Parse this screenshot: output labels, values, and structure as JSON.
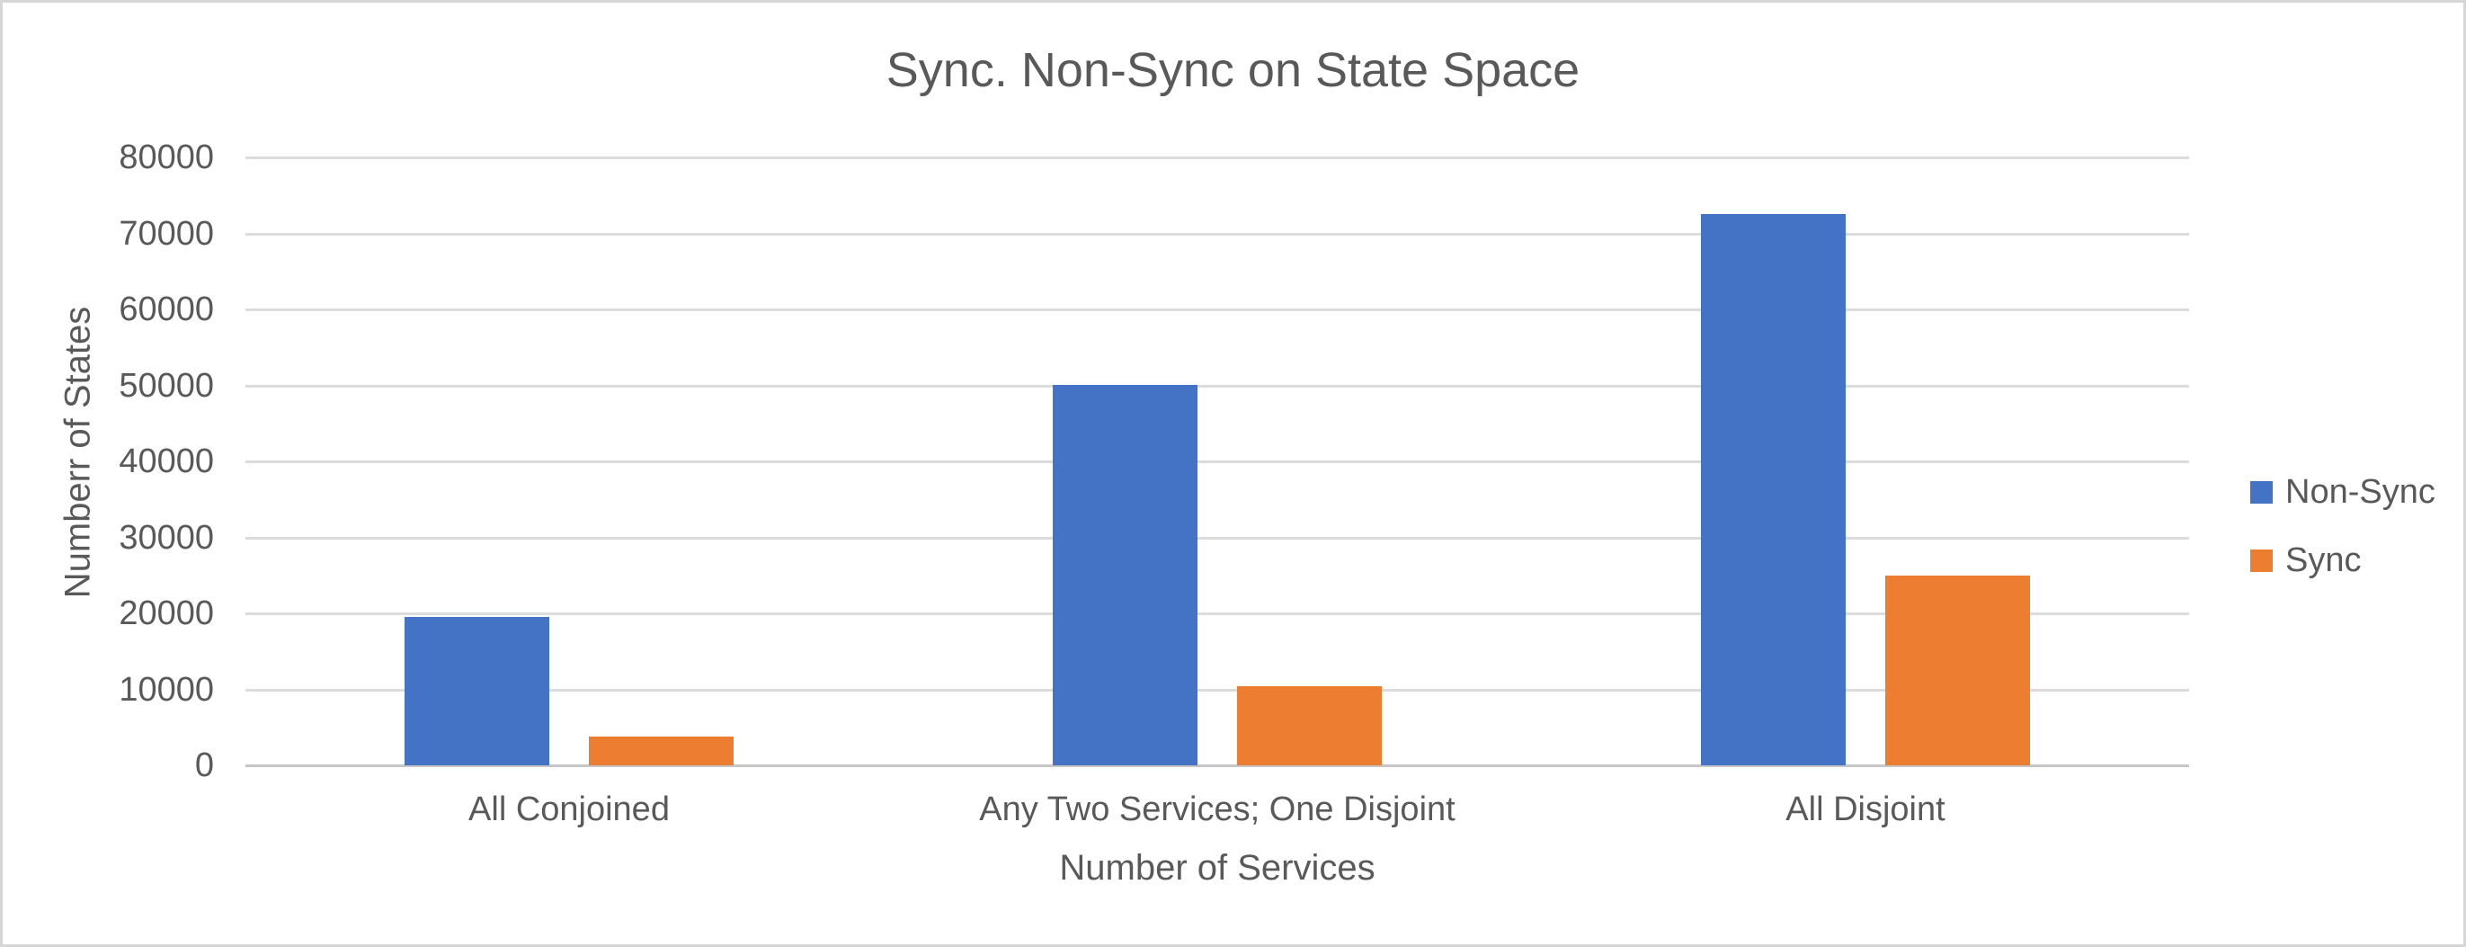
{
  "chart_data": {
    "type": "bar",
    "title": "Sync. Non-Sync on State Space",
    "categories": [
      "All Conjoined",
      "Any Two Services; One Disjoint",
      "All Disjoint"
    ],
    "series": [
      {
        "name": "Non-Sync",
        "color": "#4472C4",
        "values": [
          19500,
          50000,
          72600
        ]
      },
      {
        "name": "Sync",
        "color": "#ED7D31",
        "values": [
          3800,
          10400,
          25000
        ]
      }
    ],
    "xlabel": "Number of Services",
    "ylabel": "Numberr of States",
    "ylim": [
      0,
      80000
    ],
    "yticks": [
      0,
      10000,
      20000,
      30000,
      40000,
      50000,
      60000,
      70000,
      80000
    ],
    "grid": true,
    "legend_position": "right"
  },
  "colors": {
    "text": "#595959",
    "gridline": "#DCDCDC",
    "zero_line": "#C6C6C6",
    "frame_border": "#D6D6D6",
    "background": "#FFFFFF"
  }
}
